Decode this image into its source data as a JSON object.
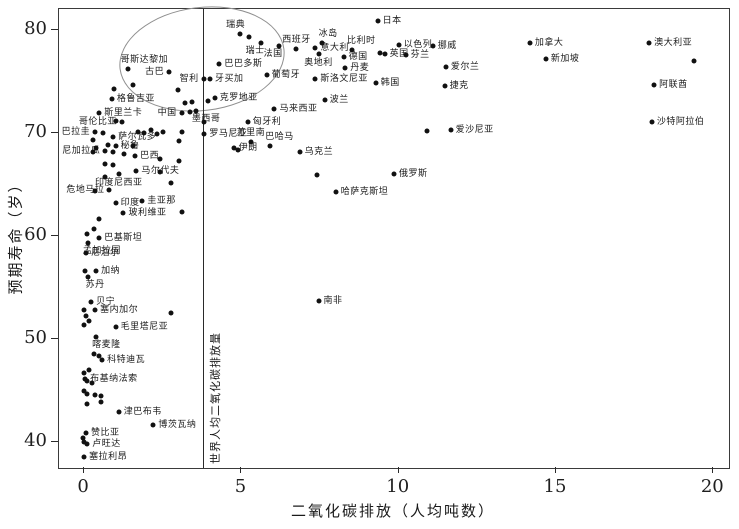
{
  "colors": {
    "dot": "#111111",
    "ellipse_stroke": "#8f8f8f",
    "line": "#2a2a2a"
  },
  "chart_data": {
    "type": "scatter",
    "title": "",
    "xlabel": "二氧化碳排放（人均吨数）",
    "ylabel": "预期寿命（岁）",
    "xlim": [
      -0.8,
      20.5
    ],
    "ylim": [
      37.5,
      82
    ],
    "x_ticks": [
      0,
      5,
      10,
      15,
      20
    ],
    "y_ticks": [
      40,
      50,
      60,
      70,
      80
    ],
    "grid": false,
    "legend": "none",
    "reference_line": {
      "x": 3.79,
      "label": "世界人均二氧化碳排放量"
    },
    "highlight_ellipse": {
      "cx": 3.7,
      "cy": 77.2,
      "rx": 2.6,
      "ry": 4.95,
      "rotate_deg": -7
    },
    "points": [
      {
        "n": "日本",
        "x": 9.33,
        "y": 80.8,
        "p": "r"
      },
      {
        "n": "瑞典",
        "x": 4.95,
        "y": 79.6,
        "p": "tl"
      },
      {
        "n": "瑞士",
        "x": 5.63,
        "y": 78.7,
        "p": "bl"
      },
      {
        "n": "法国",
        "x": 6.2,
        "y": 78.45,
        "p": "bl"
      },
      {
        "n": "西班牙",
        "x": 6.75,
        "y": 78.1,
        "p": "t"
      },
      {
        "n": "冰岛",
        "x": 7.55,
        "y": 78.75,
        "p": "tr"
      },
      {
        "n": "意大利",
        "x": 7.35,
        "y": 78.2,
        "p": "r"
      },
      {
        "n": "比利时",
        "x": 8.5,
        "y": 78.0,
        "p": "tr"
      },
      {
        "n": "以色列",
        "x": 10.0,
        "y": 78.5,
        "p": "r"
      },
      {
        "n": "挪威",
        "x": 11.08,
        "y": 78.4,
        "p": "r"
      },
      {
        "n": "英国",
        "x": 9.55,
        "y": 77.6,
        "p": "r"
      },
      {
        "n": "芬兰",
        "x": 10.22,
        "y": 77.5,
        "p": "r"
      },
      {
        "n": "奥地利",
        "x": 7.45,
        "y": 77.6,
        "p": "b"
      },
      {
        "n": "德国",
        "x": 8.25,
        "y": 77.35,
        "p": "r"
      },
      {
        "n": "丹麦",
        "x": 8.3,
        "y": 76.3,
        "p": "r"
      },
      {
        "n": "爱尔兰",
        "x": 11.5,
        "y": 76.35,
        "p": "r"
      },
      {
        "n": "加拿大",
        "x": 14.17,
        "y": 78.7,
        "p": "r"
      },
      {
        "n": "新加坡",
        "x": 14.68,
        "y": 77.2,
        "p": "r"
      },
      {
        "n": "澳大利亚",
        "x": 17.96,
        "y": 78.7,
        "p": "r"
      },
      {
        "n": "阿联酋",
        "x": 18.12,
        "y": 74.6,
        "p": "r"
      },
      {
        "n": "沙特阿拉伯",
        "x": 18.05,
        "y": 71.0,
        "p": "r"
      },
      {
        "n": "韩国",
        "x": 9.27,
        "y": 74.8,
        "p": "r"
      },
      {
        "n": "捷克",
        "x": 11.46,
        "y": 74.55,
        "p": "r"
      },
      {
        "n": "斯洛文尼亚",
        "x": 7.35,
        "y": 75.2,
        "p": "r"
      },
      {
        "n": "葡萄牙",
        "x": 5.8,
        "y": 75.6,
        "p": "r"
      },
      {
        "n": "波兰",
        "x": 7.65,
        "y": 73.2,
        "p": "r"
      },
      {
        "n": "爱沙尼亚",
        "x": 11.65,
        "y": 70.25,
        "p": "r"
      },
      {
        "n": "俄罗斯",
        "x": 9.85,
        "y": 66.0,
        "p": "r"
      },
      {
        "n": "哈萨克斯坦",
        "x": 8.0,
        "y": 64.25,
        "p": "r"
      },
      {
        "n": "乌克兰",
        "x": 6.85,
        "y": 68.1,
        "p": "r"
      },
      {
        "n": "巴哈马",
        "x": 5.9,
        "y": 68.7,
        "p": "tr"
      },
      {
        "n": "伊朗",
        "x": 4.75,
        "y": 68.55,
        "p": "r"
      },
      {
        "n": "苏里南",
        "x": 5.3,
        "y": 69.1,
        "p": "t"
      },
      {
        "n": "罗马尼亚",
        "x": 3.82,
        "y": 69.9,
        "p": "r"
      },
      {
        "n": "匈牙利",
        "x": 5.2,
        "y": 71.0,
        "p": "r"
      },
      {
        "n": "马来西亚",
        "x": 6.05,
        "y": 72.3,
        "p": "r"
      },
      {
        "n": "墨西哥",
        "x": 3.55,
        "y": 72.1,
        "p": "br"
      },
      {
        "n": "中国",
        "x": 3.1,
        "y": 71.9,
        "p": "l"
      },
      {
        "n": "克罗地亚",
        "x": 4.15,
        "y": 73.4,
        "p": "r"
      },
      {
        "n": "牙买加",
        "x": 4.0,
        "y": 75.2,
        "p": "r"
      },
      {
        "n": "智利",
        "x": 3.8,
        "y": 75.25,
        "p": "l"
      },
      {
        "n": "巴巴多斯",
        "x": 4.3,
        "y": 76.7,
        "p": "r"
      },
      {
        "n": "古巴",
        "x": 2.7,
        "y": 75.9,
        "p": "l"
      },
      {
        "n": "哥斯达黎加",
        "x": 1.4,
        "y": 76.2,
        "p": "tr"
      },
      {
        "n": "格鲁吉亚",
        "x": 0.88,
        "y": 73.3,
        "p": "r"
      },
      {
        "n": "斯里兰卡",
        "x": 0.48,
        "y": 71.9,
        "p": "r"
      },
      {
        "n": "哥伦比亚",
        "x": 1.2,
        "y": 71.0,
        "p": "l"
      },
      {
        "n": "巴拉圭",
        "x": 0.35,
        "y": 70.1,
        "p": "l"
      },
      {
        "n": "萨尔瓦多",
        "x": 0.92,
        "y": 69.6,
        "p": "r"
      },
      {
        "n": "秘鲁",
        "x": 1.0,
        "y": 68.7,
        "p": "r"
      },
      {
        "n": "尼加拉瓜",
        "x": 0.67,
        "y": 68.2,
        "p": "l"
      },
      {
        "n": "巴西",
        "x": 1.62,
        "y": 67.7,
        "p": "r"
      },
      {
        "n": "马尔代夫",
        "x": 1.66,
        "y": 66.3,
        "p": "r"
      },
      {
        "n": "印度尼西亚",
        "x": 1.1,
        "y": 66.0,
        "p": "b"
      },
      {
        "n": "危地马拉",
        "x": 0.8,
        "y": 64.5,
        "p": "l"
      },
      {
        "n": "印度",
        "x": 1.0,
        "y": 63.2,
        "p": "r"
      },
      {
        "n": "圭亚那",
        "x": 1.85,
        "y": 63.4,
        "p": "r"
      },
      {
        "n": "玻利维亚",
        "x": 1.25,
        "y": 62.2,
        "p": "r"
      },
      {
        "n": "巴基斯坦",
        "x": 0.48,
        "y": 59.8,
        "p": "r"
      },
      {
        "n": "孟加拉国",
        "x": 0.13,
        "y": 59.3,
        "p": "br"
      },
      {
        "n": "尼泊尔",
        "x": 0.06,
        "y": 58.3,
        "p": "r"
      },
      {
        "n": "加纳",
        "x": 0.38,
        "y": 56.6,
        "p": "r"
      },
      {
        "n": "苏丹",
        "x": 0.13,
        "y": 56.0,
        "p": "br"
      },
      {
        "n": "贝宁",
        "x": 0.22,
        "y": 53.6,
        "p": "r"
      },
      {
        "n": "塞内加尔",
        "x": 0.35,
        "y": 52.8,
        "p": "r"
      },
      {
        "n": "毛里塔尼亚",
        "x": 1.0,
        "y": 51.2,
        "p": "r"
      },
      {
        "n": "喀麦隆",
        "x": 0.38,
        "y": 50.2,
        "p": "br"
      },
      {
        "n": "科特迪瓦",
        "x": 0.57,
        "y": 48.0,
        "p": "r"
      },
      {
        "n": "布基纳法索",
        "x": 0.03,
        "y": 46.1,
        "p": "r"
      },
      {
        "n": "津巴布韦",
        "x": 1.1,
        "y": 42.9,
        "p": "r"
      },
      {
        "n": "博茨瓦纳",
        "x": 2.2,
        "y": 41.7,
        "p": "r"
      },
      {
        "n": "赞比亚",
        "x": 0.06,
        "y": 40.9,
        "p": "r"
      },
      {
        "n": "卢旺达",
        "x": 0.1,
        "y": 39.8,
        "p": "r"
      },
      {
        "n": "塞拉利昂",
        "x": 0.0,
        "y": 38.6,
        "p": "r"
      },
      {
        "n": "南非",
        "x": 7.45,
        "y": 53.7,
        "p": "r"
      }
    ],
    "unlabeled_points": [
      [
        5.25,
        79.3
      ],
      [
        9.4,
        77.7
      ],
      [
        19.4,
        77.0
      ],
      [
        10.9,
        70.2
      ],
      [
        4.9,
        68.35
      ],
      [
        7.4,
        65.95
      ],
      [
        3.2,
        72.9
      ],
      [
        3.44,
        73.0
      ],
      [
        3.95,
        73.1
      ],
      [
        3.37,
        72.0
      ],
      [
        3.8,
        71.0
      ],
      [
        3.1,
        70.1
      ],
      [
        3.0,
        69.2
      ],
      [
        2.99,
        74.1
      ],
      [
        1.56,
        74.6
      ],
      [
        0.95,
        74.2
      ],
      [
        1.0,
        71.1
      ],
      [
        0.6,
        70.0
      ],
      [
        1.72,
        70.1
      ],
      [
        1.9,
        70.0
      ],
      [
        2.13,
        70.3
      ],
      [
        2.3,
        69.9
      ],
      [
        2.5,
        70.1
      ],
      [
        0.29,
        69.3
      ],
      [
        0.76,
        68.8
      ],
      [
        0.38,
        68.5
      ],
      [
        0.29,
        68.1
      ],
      [
        0.92,
        68.1
      ],
      [
        1.27,
        67.9
      ],
      [
        1.56,
        68.7
      ],
      [
        2.4,
        67.5
      ],
      [
        3.0,
        67.3
      ],
      [
        0.67,
        67.0
      ],
      [
        0.92,
        66.9
      ],
      [
        2.4,
        66.2
      ],
      [
        0.67,
        65.7
      ],
      [
        2.77,
        65.1
      ],
      [
        0.35,
        64.4
      ],
      [
        3.1,
        62.3
      ],
      [
        0.48,
        61.6
      ],
      [
        0.32,
        60.7
      ],
      [
        0.1,
        60.2
      ],
      [
        0.03,
        56.6
      ],
      [
        2.77,
        52.5
      ],
      [
        0.0,
        52.8
      ],
      [
        0.06,
        52.2
      ],
      [
        0.16,
        51.8
      ],
      [
        0.0,
        51.4
      ],
      [
        0.3,
        48.6
      ],
      [
        0.48,
        48.4
      ],
      [
        0.16,
        47.0
      ],
      [
        0.0,
        46.7
      ],
      [
        0.1,
        45.9
      ],
      [
        0.25,
        45.7
      ],
      [
        0.0,
        45.0
      ],
      [
        0.1,
        44.7
      ],
      [
        0.35,
        44.6
      ],
      [
        0.54,
        44.5
      ],
      [
        0.1,
        43.7
      ],
      [
        0.54,
        43.9
      ],
      [
        -0.03,
        40.4
      ],
      [
        0.0,
        40.0
      ]
    ]
  }
}
